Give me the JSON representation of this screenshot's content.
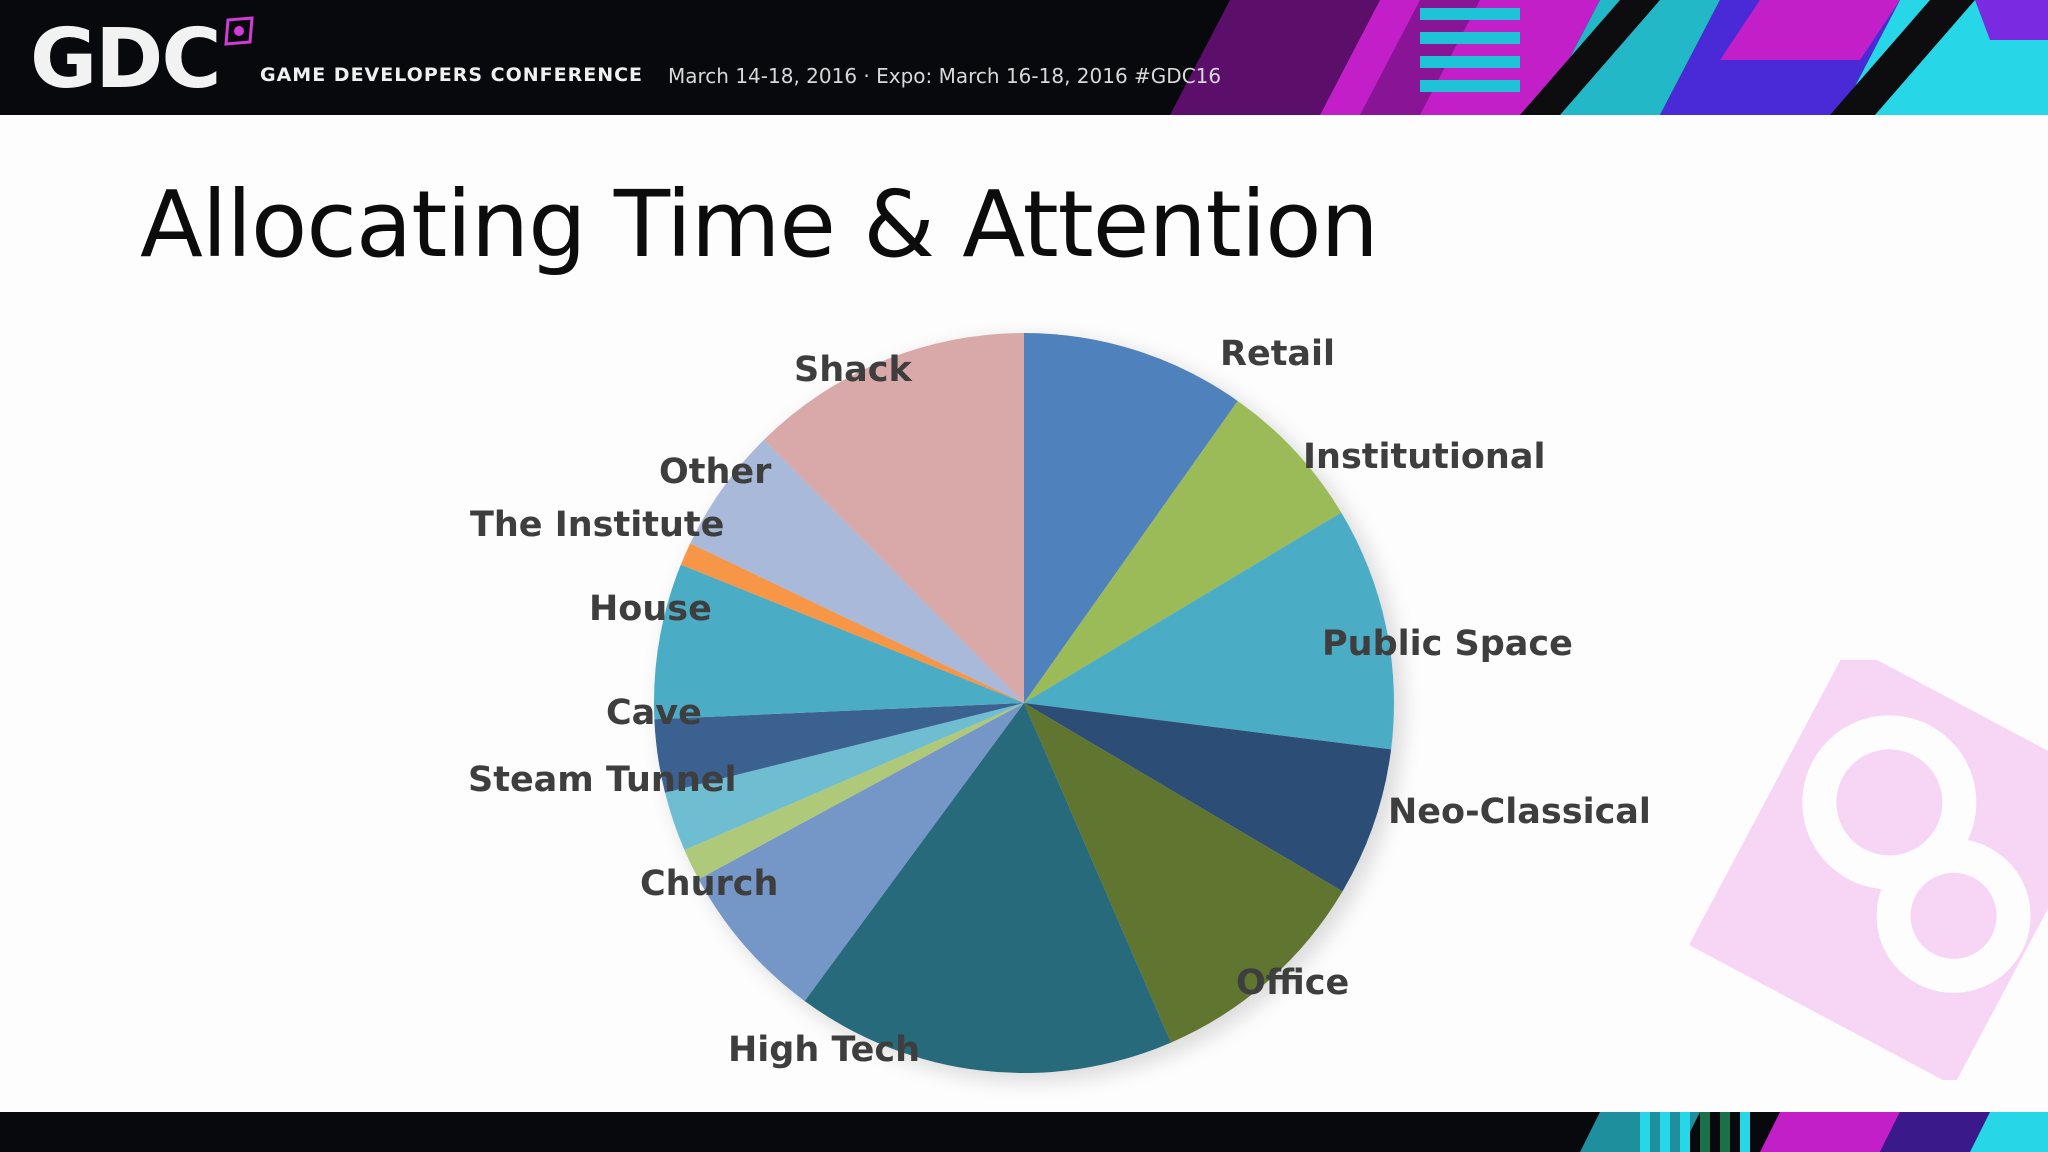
{
  "header": {
    "logo_text": "GDC",
    "conference_name": "GAME DEVELOPERS CONFERENCE",
    "dates_text": "March 14-18, 2016 · Expo: March 16-18, 2016  #GDC16"
  },
  "slide": {
    "title": "Allocating Time & Attention"
  },
  "chart_data": {
    "type": "pie",
    "title": "",
    "legend": "none",
    "labels_on_slices": true,
    "slices": [
      {
        "label": "Retail",
        "value": 9.8,
        "color": "#4f81bd"
      },
      {
        "label": "Institutional",
        "value": 6.6,
        "color": "#9bbb59"
      },
      {
        "label": "Public Space",
        "value": 10.6,
        "color": "#4bacc6"
      },
      {
        "label": "Neo-Classical",
        "value": 6.5,
        "color": "#2c4d75"
      },
      {
        "label": "Office",
        "value": 10.0,
        "color": "#5f7530"
      },
      {
        "label": "High Tech",
        "value": 16.6,
        "color": "#276a7c"
      },
      {
        "label": "Church",
        "value": 7.0,
        "color": "#7597c8"
      },
      {
        "label": "",
        "value": 1.4,
        "color": "#afc97a"
      },
      {
        "label": "Steam Tunnel",
        "value": 2.6,
        "color": "#6fbdd1"
      },
      {
        "label": "Cave",
        "value": 3.2,
        "color": "#3a6190"
      },
      {
        "label": "House",
        "value": 6.8,
        "color": "#4bacc6"
      },
      {
        "label": "The Institute",
        "value": 1.0,
        "color": "#f79646"
      },
      {
        "label": "Other",
        "value": 5.5,
        "color": "#a9b9d9"
      },
      {
        "label": "Shack",
        "value": 12.4,
        "color": "#d9a8a8"
      }
    ]
  }
}
